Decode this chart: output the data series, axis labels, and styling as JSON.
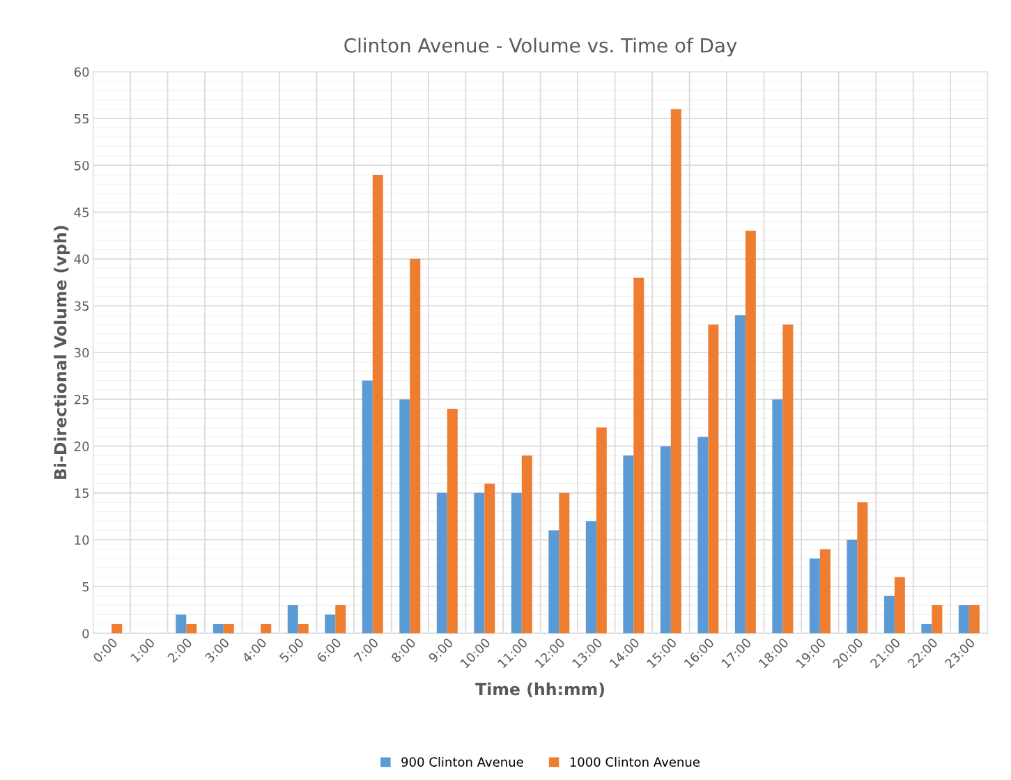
{
  "chart_data": {
    "type": "bar",
    "title": "Clinton Avenue - Volume vs. Time of Day",
    "xlabel": "Time (hh:mm)",
    "ylabel": "Bi-Directional Volume (vph)",
    "categories": [
      "0:00",
      "1:00",
      "2:00",
      "3:00",
      "4:00",
      "5:00",
      "6:00",
      "7:00",
      "8:00",
      "9:00",
      "10:00",
      "11:00",
      "12:00",
      "13:00",
      "14:00",
      "15:00",
      "16:00",
      "17:00",
      "18:00",
      "19:00",
      "20:00",
      "21:00",
      "22:00",
      "23:00"
    ],
    "series": [
      {
        "name": "900 Clinton Avenue",
        "color": "#5b9bd5",
        "values": [
          0,
          0,
          2,
          1,
          0,
          3,
          2,
          27,
          25,
          15,
          15,
          15,
          11,
          12,
          19,
          20,
          21,
          34,
          25,
          8,
          10,
          4,
          1,
          3
        ]
      },
      {
        "name": "1000 Clinton Avenue",
        "color": "#ed7d31",
        "values": [
          1,
          0,
          1,
          1,
          1,
          1,
          3,
          49,
          40,
          24,
          16,
          19,
          15,
          22,
          38,
          56,
          33,
          43,
          33,
          9,
          14,
          6,
          3,
          3
        ]
      }
    ],
    "ylim": [
      0,
      60
    ],
    "yticks": [
      0,
      5,
      10,
      15,
      20,
      25,
      30,
      35,
      40,
      45,
      50,
      55,
      60
    ],
    "grid": true,
    "legend": "bottom"
  }
}
